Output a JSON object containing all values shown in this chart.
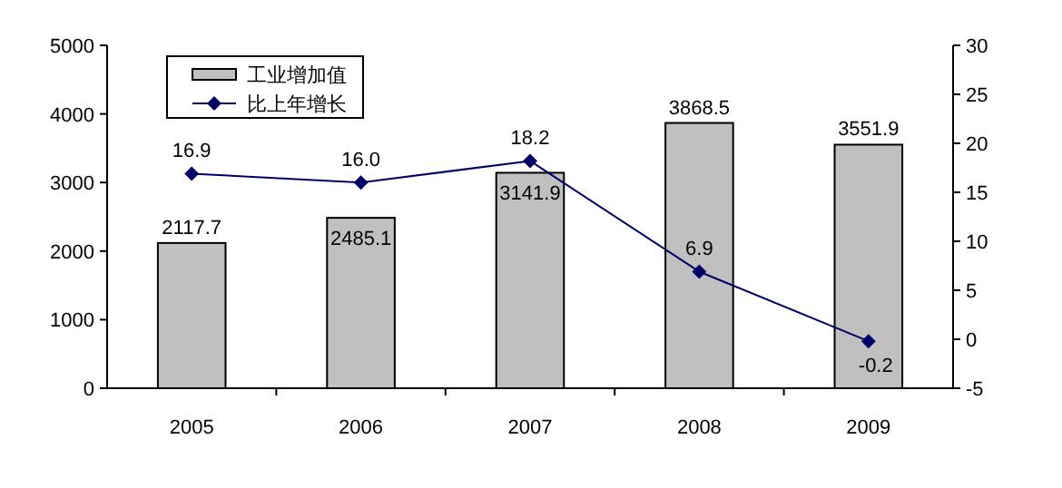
{
  "chart_data": {
    "type": "bar",
    "categories": [
      "2005",
      "2006",
      "2007",
      "2008",
      "2009"
    ],
    "series": [
      {
        "name": "工业增加值",
        "color": "#c0c0c0",
        "values": [
          2117.7,
          2485.1,
          3141.9,
          3868.5,
          3551.9
        ],
        "value_labels": [
          "2117.7",
          "2485.1",
          "3141.9",
          "3868.5",
          "3551.9"
        ]
      },
      {
        "name": "比上年增长",
        "type": "line",
        "axis": "y2",
        "color": "#000066",
        "values": [
          16.9,
          16.0,
          18.2,
          6.9,
          -0.2
        ],
        "value_labels": [
          "16.9",
          "16.0",
          "18.2",
          "6.9",
          "-0.2"
        ]
      }
    ],
    "ylim": [
      0,
      5000
    ],
    "yticks": [
      0,
      1000,
      2000,
      3000,
      4000,
      5000
    ],
    "y2lim": [
      -5,
      30
    ],
    "y2ticks": [
      -5,
      0,
      5,
      10,
      15,
      20,
      25,
      30
    ],
    "marker": "diamond",
    "legend": "top left",
    "grid": false
  }
}
